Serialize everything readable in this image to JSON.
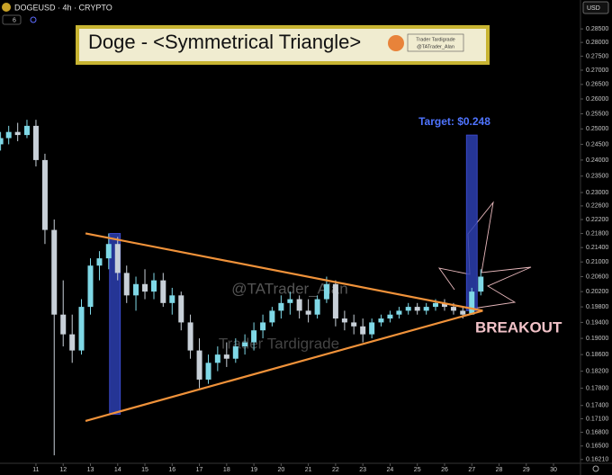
{
  "chart_data": {
    "type": "candlestick",
    "header": "DOGEUSD · 4h · CRYPTO",
    "indicator_count": "6",
    "currency": "USD",
    "title": "Doge - <Symmetrical Triangle>",
    "logo_name": "Trader Tardigrade",
    "logo_handle": "@TATrader_Alan",
    "watermark": [
      "@TATrader_Alan",
      "Trader Tardigrade"
    ],
    "target_label": "Target: $0.248",
    "breakout_label": "BREAKOUT",
    "log_scale": true,
    "grid": false,
    "up_color": "#7fd8e6",
    "down_color": "#c8d0d8",
    "trendline_color": "#f0923a",
    "highlight_color": "#2c3fb0",
    "x": [
      9.7,
      10,
      10.33,
      10.67,
      11,
      11.33,
      11.67,
      12,
      12.33,
      12.67,
      13,
      13.33,
      13.67,
      14,
      14.33,
      14.67,
      15,
      15.33,
      15.67,
      16,
      16.33,
      16.67,
      17,
      17.33,
      17.67,
      18,
      18.33,
      18.67,
      19,
      19.33,
      19.67,
      20,
      20.33,
      20.67,
      21,
      21.33,
      21.67,
      22,
      22.33,
      22.67,
      23,
      23.33,
      23.67,
      24,
      24.33,
      24.67,
      25,
      25.33,
      25.67,
      26,
      26.33,
      26.67,
      27,
      27.33
    ],
    "open": [
      0.245,
      0.247,
      0.249,
      0.248,
      0.251,
      0.24,
      0.219,
      0.196,
      0.191,
      0.187,
      0.198,
      0.209,
      0.211,
      0.215,
      0.207,
      0.201,
      0.204,
      0.202,
      0.205,
      0.199,
      0.201,
      0.194,
      0.187,
      0.18,
      0.184,
      0.186,
      0.185,
      0.188,
      0.189,
      0.192,
      0.194,
      0.197,
      0.199,
      0.2,
      0.197,
      0.196,
      0.2,
      0.204,
      0.195,
      0.194,
      0.193,
      0.191,
      0.194,
      0.195,
      0.196,
      0.197,
      0.198,
      0.197,
      0.198,
      0.199,
      0.198,
      0.197,
      0.196,
      0.202
    ],
    "high": [
      0.249,
      0.251,
      0.252,
      0.253,
      0.253,
      0.242,
      0.222,
      0.205,
      0.196,
      0.2,
      0.211,
      0.213,
      0.218,
      0.217,
      0.209,
      0.206,
      0.208,
      0.207,
      0.207,
      0.203,
      0.202,
      0.196,
      0.19,
      0.186,
      0.188,
      0.189,
      0.19,
      0.191,
      0.194,
      0.196,
      0.198,
      0.201,
      0.202,
      0.201,
      0.2,
      0.201,
      0.206,
      0.205,
      0.197,
      0.196,
      0.195,
      0.195,
      0.196,
      0.197,
      0.198,
      0.199,
      0.199,
      0.199,
      0.2,
      0.2,
      0.199,
      0.198,
      0.203,
      0.208
    ],
    "low": [
      0.243,
      0.245,
      0.246,
      0.247,
      0.238,
      0.215,
      0.163,
      0.188,
      0.184,
      0.186,
      0.196,
      0.205,
      0.208,
      0.205,
      0.199,
      0.197,
      0.2,
      0.2,
      0.198,
      0.196,
      0.192,
      0.185,
      0.178,
      0.179,
      0.182,
      0.183,
      0.184,
      0.186,
      0.187,
      0.19,
      0.193,
      0.195,
      0.196,
      0.195,
      0.194,
      0.195,
      0.199,
      0.193,
      0.192,
      0.191,
      0.189,
      0.19,
      0.193,
      0.194,
      0.195,
      0.196,
      0.196,
      0.196,
      0.197,
      0.197,
      0.196,
      0.195,
      0.196,
      0.201
    ],
    "close": [
      0.247,
      0.249,
      0.248,
      0.251,
      0.24,
      0.219,
      0.196,
      0.191,
      0.187,
      0.198,
      0.209,
      0.211,
      0.215,
      0.207,
      0.201,
      0.204,
      0.202,
      0.205,
      0.199,
      0.201,
      0.194,
      0.187,
      0.18,
      0.184,
      0.186,
      0.185,
      0.188,
      0.189,
      0.192,
      0.194,
      0.197,
      0.199,
      0.2,
      0.197,
      0.196,
      0.2,
      0.204,
      0.195,
      0.194,
      0.193,
      0.191,
      0.194,
      0.195,
      0.196,
      0.197,
      0.198,
      0.197,
      0.198,
      0.199,
      0.198,
      0.197,
      0.196,
      0.202,
      0.206
    ],
    "trendlines": [
      {
        "x": [
          12.82,
          27.4
        ],
        "y": [
          0.218,
          0.197
        ]
      },
      {
        "x": [
          12.82,
          27.4
        ],
        "y": [
          0.1705,
          0.197
        ]
      }
    ],
    "highlights": [
      {
        "x": 13.9,
        "range": [
          0.172,
          0.218
        ]
      },
      {
        "x": 27.0,
        "range": [
          0.197,
          0.248
        ]
      }
    ],
    "xlim": [
      9.68,
      30.99
    ],
    "ylim": [
      0.1613,
      0.296
    ],
    "xticks": [
      11,
      12,
      13,
      14,
      15,
      16,
      17,
      18,
      19,
      20,
      21,
      22,
      23,
      24,
      25,
      26,
      27,
      28,
      29,
      30
    ],
    "yticks": [
      {
        "value": 0.285,
        "label": "0.28500"
      },
      {
        "value": 0.28,
        "label": "0.28000"
      },
      {
        "value": 0.275,
        "label": "0.27500"
      },
      {
        "value": 0.27,
        "label": "0.27000"
      },
      {
        "value": 0.265,
        "label": "0.26500"
      },
      {
        "value": 0.26,
        "label": "0.26000"
      },
      {
        "value": 0.255,
        "label": "0.25500"
      },
      {
        "value": 0.25,
        "label": "0.25000"
      },
      {
        "value": 0.245,
        "label": "0.24500"
      },
      {
        "value": 0.24,
        "label": "0.24000"
      },
      {
        "value": 0.235,
        "label": "0.23500"
      },
      {
        "value": 0.23,
        "label": "0.23000"
      },
      {
        "value": 0.226,
        "label": "0.22600"
      },
      {
        "value": 0.222,
        "label": "0.22200"
      },
      {
        "value": 0.218,
        "label": "0.21800"
      },
      {
        "value": 0.214,
        "label": "0.21400"
      },
      {
        "value": 0.21,
        "label": "0.21000"
      },
      {
        "value": 0.206,
        "label": "0.20600"
      },
      {
        "value": 0.202,
        "label": "0.20200"
      },
      {
        "value": 0.198,
        "label": "0.19800"
      },
      {
        "value": 0.194,
        "label": "0.19400"
      },
      {
        "value": 0.19,
        "label": "0.19000"
      },
      {
        "value": 0.186,
        "label": "0.18600"
      },
      {
        "value": 0.182,
        "label": "0.18200"
      },
      {
        "value": 0.178,
        "label": "0.17800"
      },
      {
        "value": 0.174,
        "label": "0.17400"
      },
      {
        "value": 0.171,
        "label": "0.17100"
      },
      {
        "value": 0.168,
        "label": "0.16800"
      },
      {
        "value": 0.165,
        "label": "0.16500"
      },
      {
        "value": 0.1621,
        "label": "0.16210"
      }
    ]
  }
}
